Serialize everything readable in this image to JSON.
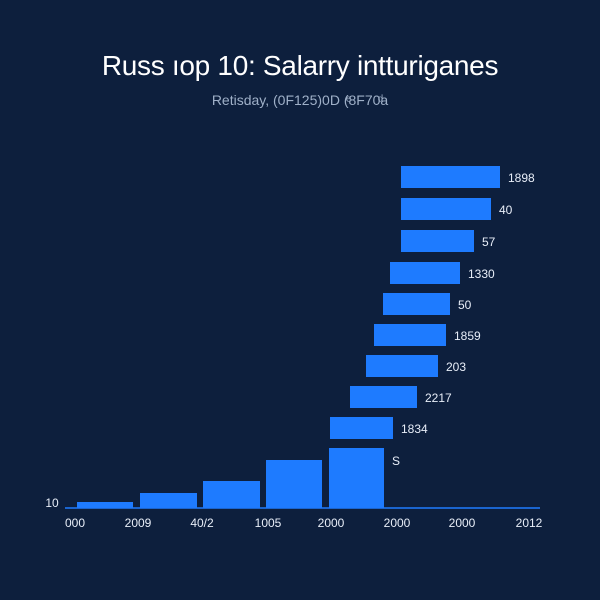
{
  "colors": {
    "background": "#0d1f3d",
    "bar": "#1e7bff",
    "axis": "#1e7bff",
    "text": "#e8eef8",
    "subtitle": "#9fb0c8"
  },
  "chart_data": {
    "type": "bar",
    "title": "Russ ıop 10: Salarry intturiganes",
    "subtitle": "Retisday, (0F125)0D (ͤ8F70ͩa",
    "grid": false,
    "legend": "none",
    "y_axis_label": "10",
    "x_tick_labels": [
      "000",
      "2009",
      "40/2",
      "1005",
      "2000",
      "2000",
      "2000",
      "2012"
    ],
    "horizontal_bars": {
      "series": [
        {
          "label": "1898",
          "value": 1898
        },
        {
          "label": "40",
          "value": 40
        },
        {
          "label": "57",
          "value": 57
        },
        {
          "label": "1330",
          "value": 1330
        },
        {
          "label": "50",
          "value": 50
        },
        {
          "label": "1859",
          "value": 1859
        },
        {
          "label": "203",
          "value": 203
        },
        {
          "label": "2217",
          "value": 2217
        },
        {
          "label": "1834",
          "value": 1834
        },
        {
          "label": "S",
          "value": null
        }
      ]
    },
    "vertical_bars": {
      "values": [
        10,
        25,
        45,
        80,
        100
      ]
    }
  }
}
